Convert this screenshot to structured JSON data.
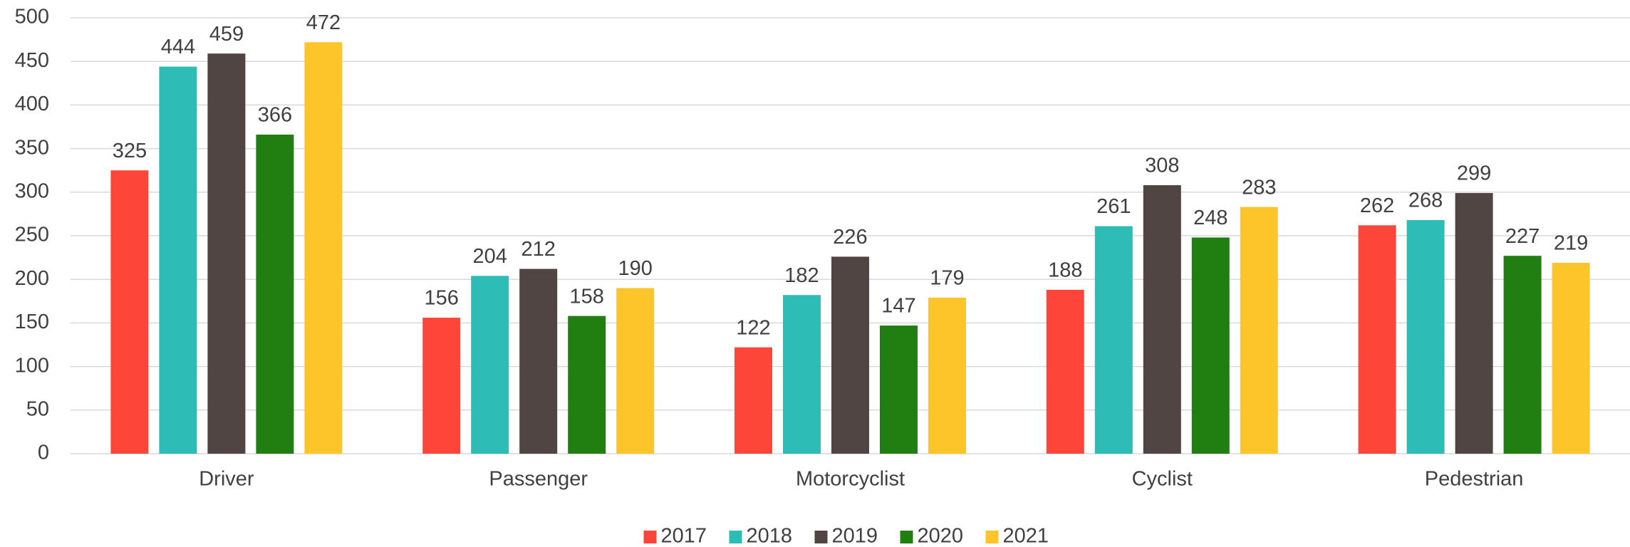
{
  "chart_data": {
    "type": "bar",
    "categories": [
      "Driver",
      "Passenger",
      "Motorcyclist",
      "Cyclist",
      "Pedestrian"
    ],
    "series": [
      {
        "name": "2017",
        "color": "#fe453a",
        "values": [
          325,
          156,
          122,
          188,
          262
        ]
      },
      {
        "name": "2018",
        "color": "#2ebcb6",
        "values": [
          444,
          204,
          182,
          261,
          268
        ]
      },
      {
        "name": "2019",
        "color": "#504542",
        "values": [
          459,
          212,
          226,
          308,
          299
        ]
      },
      {
        "name": "2020",
        "color": "#217f12",
        "values": [
          366,
          158,
          147,
          248,
          227
        ]
      },
      {
        "name": "2021",
        "color": "#fec52a",
        "values": [
          472,
          190,
          179,
          283,
          219
        ]
      }
    ],
    "ylim": [
      0,
      500
    ],
    "yticks": [
      0,
      50,
      100,
      150,
      200,
      250,
      300,
      350,
      400,
      450,
      500
    ],
    "grid": true,
    "legend": "bottom"
  }
}
